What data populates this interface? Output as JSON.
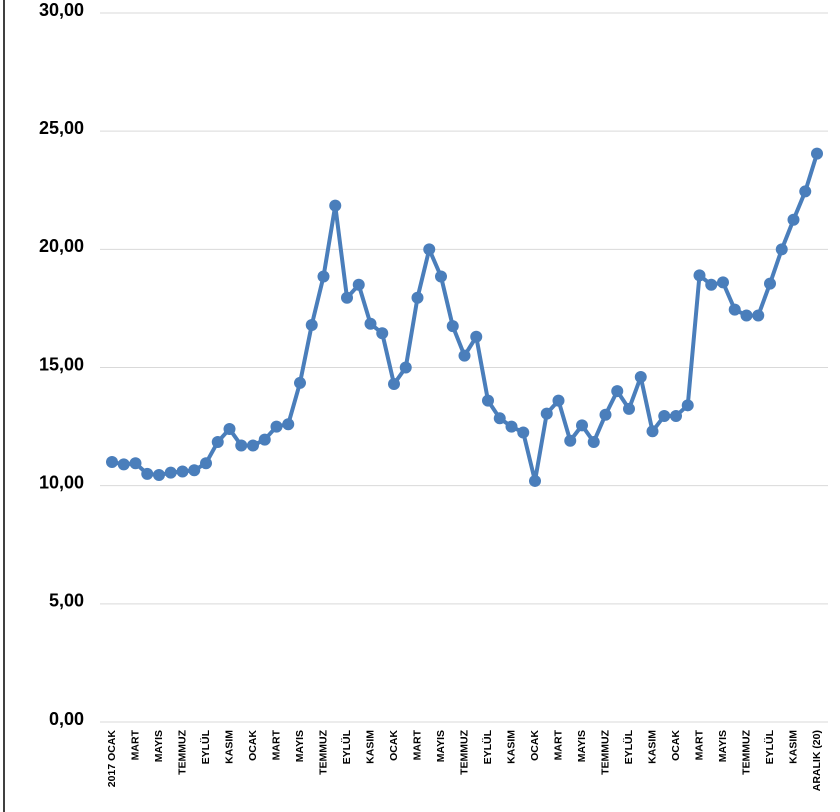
{
  "chart_data": {
    "type": "line",
    "color": "#4a7ebb",
    "grid": true,
    "categories": [
      "2017 OCAK",
      null,
      "MART",
      null,
      "MAYIS",
      null,
      "TEMMUZ",
      null,
      "EYLÜL",
      null,
      "KASIM",
      null,
      "OCAK",
      null,
      "MART",
      null,
      "MAYIS",
      null,
      "TEMMUZ",
      null,
      "EYLÜL",
      null,
      "KASIM",
      null,
      "OCAK",
      null,
      "MART",
      null,
      "MAYIS",
      null,
      "TEMMUZ",
      null,
      "EYLÜL",
      null,
      "KASIM",
      null,
      "OCAK",
      null,
      "MART",
      null,
      "MAYIS",
      null,
      "TEMMUZ",
      null,
      "EYLÜL",
      null,
      "KASIM",
      null,
      "OCAK",
      null,
      "MART",
      null,
      "MAYIS",
      null,
      "TEMMUZ",
      null,
      "EYLÜL",
      null,
      "KASIM",
      null,
      "ARALIK (20)"
    ],
    "values": [
      11.0,
      10.9,
      10.95,
      10.5,
      10.45,
      10.55,
      10.6,
      10.65,
      10.95,
      11.85,
      12.4,
      11.7,
      11.7,
      11.95,
      12.5,
      12.6,
      14.35,
      16.8,
      18.85,
      21.85,
      17.95,
      18.5,
      16.85,
      16.45,
      14.3,
      15.0,
      17.95,
      20.0,
      18.85,
      16.75,
      15.5,
      16.3,
      13.6,
      12.85,
      12.5,
      12.25,
      10.2,
      13.05,
      13.6,
      11.9,
      12.55,
      11.85,
      13.0,
      14.0,
      13.25,
      14.6,
      12.3,
      12.95,
      12.95,
      13.4,
      18.9,
      18.5,
      18.6,
      17.45,
      17.2,
      17.2,
      18.55,
      20.0,
      21.25,
      22.45,
      24.05
    ],
    "ylim": [
      0,
      30
    ],
    "yticks": [
      {
        "value": 0,
        "label": "0,00"
      },
      {
        "value": 5,
        "label": "5,00"
      },
      {
        "value": 10,
        "label": "10,00"
      },
      {
        "value": 15,
        "label": "15,00"
      },
      {
        "value": 20,
        "label": "20,00"
      },
      {
        "value": 25,
        "label": "25,00"
      },
      {
        "value": 30,
        "label": "30,00"
      }
    ]
  }
}
